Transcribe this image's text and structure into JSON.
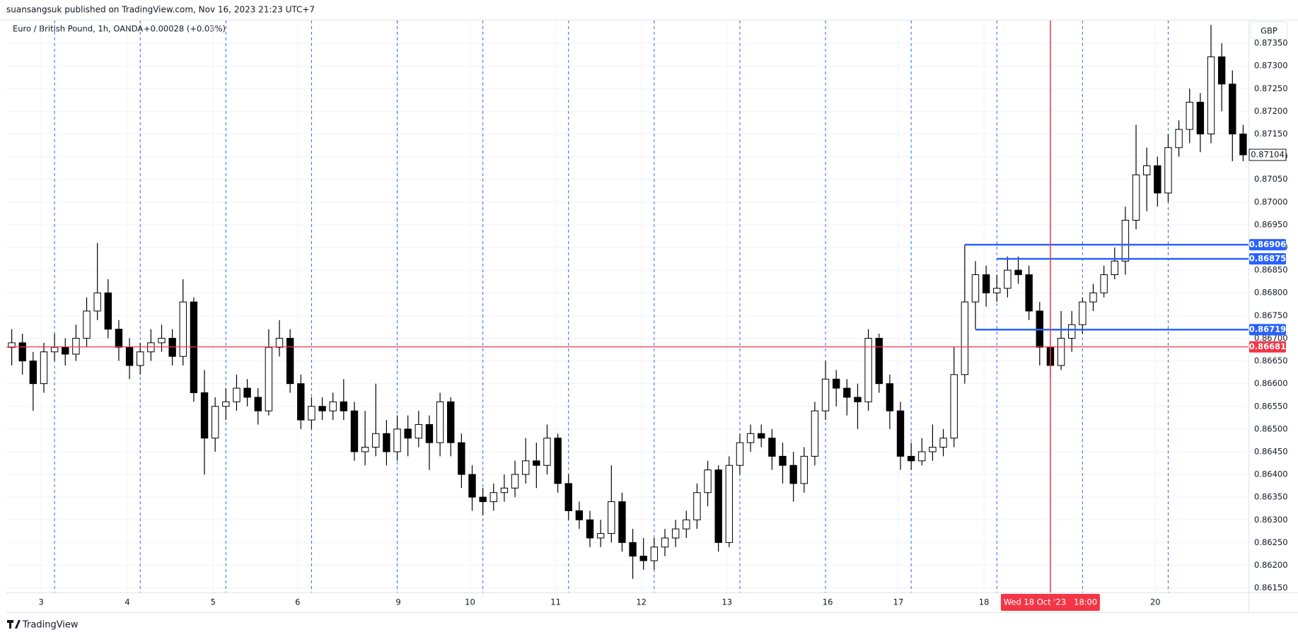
{
  "header": {
    "publisher": "suansangsuk published on TradingView.com, Nov 16, 2023 21:23 UTC+7",
    "symbol": "Euro / British Pound, 1h, OANDA",
    "change": "+0.00028 (+0.03%)",
    "currency": "GBP",
    "brand": "TradingView"
  },
  "chart_data": {
    "type": "candlestick",
    "up_color": "#ffffff",
    "down_color": "#000000",
    "wick_color": "#000000",
    "grid": true,
    "xlim": [
      0,
      116
    ],
    "ylim": [
      0.8614,
      0.874
    ],
    "yticks": [
      {
        "value": 0.8615,
        "label": "0.86150"
      },
      {
        "value": 0.862,
        "label": "0.86200"
      },
      {
        "value": 0.8625,
        "label": "0.86250"
      },
      {
        "value": 0.863,
        "label": "0.86300"
      },
      {
        "value": 0.8635,
        "label": "0.86350"
      },
      {
        "value": 0.864,
        "label": "0.86400"
      },
      {
        "value": 0.8645,
        "label": "0.86450"
      },
      {
        "value": 0.865,
        "label": "0.86500"
      },
      {
        "value": 0.8655,
        "label": "0.86550"
      },
      {
        "value": 0.866,
        "label": "0.86600"
      },
      {
        "value": 0.8665,
        "label": "0.86650"
      },
      {
        "value": 0.867,
        "label": "0.86700"
      },
      {
        "value": 0.8675,
        "label": "0.86750"
      },
      {
        "value": 0.868,
        "label": "0.86800"
      },
      {
        "value": 0.8685,
        "label": "0.86850"
      },
      {
        "value": 0.869,
        "label": "0.86900"
      },
      {
        "value": 0.8695,
        "label": "0.86950"
      },
      {
        "value": 0.87,
        "label": "0.87000"
      },
      {
        "value": 0.8705,
        "label": "0.87050"
      },
      {
        "value": 0.871,
        "label": "0.87100"
      },
      {
        "value": 0.8715,
        "label": "0.87150"
      },
      {
        "value": 0.872,
        "label": "0.87200"
      },
      {
        "value": 0.8725,
        "label": "0.87250"
      },
      {
        "value": 0.873,
        "label": "0.87300"
      },
      {
        "value": 0.8735,
        "label": "0.87350"
      }
    ],
    "xticks": [
      {
        "value": 3.25,
        "label": "3"
      },
      {
        "value": 11.3,
        "label": "4"
      },
      {
        "value": 19.3,
        "label": "5"
      },
      {
        "value": 27.2,
        "label": "6"
      },
      {
        "value": 36.6,
        "label": "9"
      },
      {
        "value": 43.3,
        "label": "10"
      },
      {
        "value": 51.3,
        "label": "11"
      },
      {
        "value": 59.3,
        "label": "12"
      },
      {
        "value": 67.3,
        "label": "13"
      },
      {
        "value": 76.7,
        "label": "16"
      },
      {
        "value": 83.3,
        "label": "17"
      },
      {
        "value": 91.3,
        "label": "18"
      },
      {
        "value": 107.3,
        "label": "20"
      }
    ],
    "session_lines": {
      "color": "#2962ff",
      "x": [
        4.5,
        12.5,
        20.5,
        28.5,
        36.5,
        44.5,
        52.5,
        60.5,
        68.5,
        76.5,
        84.5,
        92.5,
        100.5,
        108.5
      ]
    },
    "horizontal_lines": [
      {
        "price": 0.86906,
        "start": 89.5,
        "color": "#2962ff"
      },
      {
        "price": 0.86875,
        "start": 92.5,
        "color": "#2962ff"
      },
      {
        "price": 0.86719,
        "start": 90.5,
        "color": "#2962ff"
      },
      {
        "price": 0.86681,
        "start": 0,
        "color": "#f23645"
      }
    ],
    "crosshair": {
      "x": 97.5,
      "label": "Wed 18 Oct '23   18:00",
      "color": "#f23645"
    },
    "last_price": 0.87104,
    "ohlc": [
      [
        0.8668,
        0.8672,
        0.8664,
        0.8669
      ],
      [
        0.8669,
        0.8671,
        0.8662,
        0.8665
      ],
      [
        0.8665,
        0.8667,
        0.8654,
        0.866
      ],
      [
        0.866,
        0.8669,
        0.8658,
        0.8667
      ],
      [
        0.8667,
        0.8671,
        0.8665,
        0.8668
      ],
      [
        0.8668,
        0.867,
        0.8664,
        0.86665
      ],
      [
        0.86665,
        0.8673,
        0.8665,
        0.867
      ],
      [
        0.867,
        0.8679,
        0.8668,
        0.8676
      ],
      [
        0.8676,
        0.8691,
        0.8674,
        0.868
      ],
      [
        0.868,
        0.8683,
        0.867,
        0.8672
      ],
      [
        0.8672,
        0.8674,
        0.8665,
        0.8668
      ],
      [
        0.8668,
        0.867,
        0.8661,
        0.8664
      ],
      [
        0.8664,
        0.8669,
        0.8662,
        0.8667
      ],
      [
        0.8667,
        0.8672,
        0.8665,
        0.8669
      ],
      [
        0.8669,
        0.8673,
        0.8667,
        0.867
      ],
      [
        0.867,
        0.8672,
        0.8664,
        0.8666
      ],
      [
        0.8666,
        0.8683,
        0.8664,
        0.8678
      ],
      [
        0.8678,
        0.8679,
        0.8656,
        0.8658
      ],
      [
        0.8658,
        0.8663,
        0.864,
        0.8648
      ],
      [
        0.8648,
        0.8657,
        0.8645,
        0.8655
      ],
      [
        0.8655,
        0.8659,
        0.8652,
        0.8656
      ],
      [
        0.8656,
        0.8662,
        0.8654,
        0.8659
      ],
      [
        0.8659,
        0.8661,
        0.8655,
        0.8657
      ],
      [
        0.8657,
        0.8659,
        0.8651,
        0.8654
      ],
      [
        0.8654,
        0.8672,
        0.8653,
        0.8668
      ],
      [
        0.8668,
        0.8674,
        0.8666,
        0.867
      ],
      [
        0.867,
        0.8672,
        0.8658,
        0.866
      ],
      [
        0.866,
        0.8662,
        0.865,
        0.8652
      ],
      [
        0.8652,
        0.8657,
        0.865,
        0.8655
      ],
      [
        0.8655,
        0.8657,
        0.8652,
        0.8654
      ],
      [
        0.8654,
        0.8658,
        0.8652,
        0.8656
      ],
      [
        0.8656,
        0.8661,
        0.8652,
        0.8654
      ],
      [
        0.8654,
        0.8656,
        0.8643,
        0.8645
      ],
      [
        0.8645,
        0.8654,
        0.8642,
        0.8646
      ],
      [
        0.8646,
        0.866,
        0.8644,
        0.8649
      ],
      [
        0.8649,
        0.8652,
        0.8642,
        0.8645
      ],
      [
        0.8645,
        0.8653,
        0.8643,
        0.865
      ],
      [
        0.865,
        0.8653,
        0.8644,
        0.8648
      ],
      [
        0.8648,
        0.8654,
        0.8646,
        0.8651
      ],
      [
        0.8651,
        0.8653,
        0.8641,
        0.8647
      ],
      [
        0.8647,
        0.8658,
        0.8644,
        0.8656
      ],
      [
        0.8656,
        0.8657,
        0.8644,
        0.8647
      ],
      [
        0.8647,
        0.8649,
        0.8637,
        0.864
      ],
      [
        0.864,
        0.8642,
        0.8632,
        0.8635
      ],
      [
        0.8635,
        0.8637,
        0.8631,
        0.8634
      ],
      [
        0.8634,
        0.8638,
        0.8632,
        0.8636
      ],
      [
        0.8636,
        0.864,
        0.8634,
        0.8637
      ],
      [
        0.8637,
        0.8643,
        0.8635,
        0.864
      ],
      [
        0.864,
        0.8648,
        0.8638,
        0.8643
      ],
      [
        0.8643,
        0.8647,
        0.8637,
        0.8642
      ],
      [
        0.8642,
        0.8651,
        0.864,
        0.8648
      ],
      [
        0.8648,
        0.8649,
        0.8636,
        0.8638
      ],
      [
        0.8638,
        0.864,
        0.863,
        0.8632
      ],
      [
        0.8632,
        0.8634,
        0.8628,
        0.863
      ],
      [
        0.863,
        0.8632,
        0.8624,
        0.8626
      ],
      [
        0.8626,
        0.863,
        0.8624,
        0.8627
      ],
      [
        0.8627,
        0.8642,
        0.8625,
        0.8634
      ],
      [
        0.8634,
        0.8636,
        0.8623,
        0.8625
      ],
      [
        0.8625,
        0.8628,
        0.8617,
        0.8622
      ],
      [
        0.8622,
        0.8626,
        0.8619,
        0.8621
      ],
      [
        0.8621,
        0.8626,
        0.8619,
        0.8624
      ],
      [
        0.8624,
        0.8628,
        0.8622,
        0.8626
      ],
      [
        0.8626,
        0.863,
        0.8624,
        0.8628
      ],
      [
        0.8628,
        0.8632,
        0.8626,
        0.863
      ],
      [
        0.863,
        0.8638,
        0.8628,
        0.8636
      ],
      [
        0.8636,
        0.8643,
        0.8633,
        0.8641
      ],
      [
        0.8641,
        0.8642,
        0.8623,
        0.8625
      ],
      [
        0.8625,
        0.8644,
        0.8624,
        0.8642
      ],
      [
        0.8642,
        0.8649,
        0.864,
        0.8647
      ],
      [
        0.8647,
        0.8651,
        0.8645,
        0.8649
      ],
      [
        0.8649,
        0.8651,
        0.8646,
        0.8648
      ],
      [
        0.8648,
        0.865,
        0.8641,
        0.8644
      ],
      [
        0.8644,
        0.8647,
        0.8638,
        0.8642
      ],
      [
        0.8642,
        0.8645,
        0.8634,
        0.8638
      ],
      [
        0.8638,
        0.8646,
        0.8636,
        0.8644
      ],
      [
        0.8644,
        0.8656,
        0.8642,
        0.8654
      ],
      [
        0.8654,
        0.8665,
        0.8652,
        0.8661
      ],
      [
        0.8661,
        0.8663,
        0.8655,
        0.8659
      ],
      [
        0.8659,
        0.8661,
        0.8653,
        0.8657
      ],
      [
        0.8657,
        0.866,
        0.865,
        0.8656
      ],
      [
        0.8656,
        0.8672,
        0.8654,
        0.867
      ],
      [
        0.867,
        0.8671,
        0.8658,
        0.866
      ],
      [
        0.866,
        0.8662,
        0.865,
        0.8654
      ],
      [
        0.8654,
        0.8656,
        0.8641,
        0.8644
      ],
      [
        0.8644,
        0.8647,
        0.8641,
        0.8643
      ],
      [
        0.8643,
        0.8648,
        0.8642,
        0.8645
      ],
      [
        0.8645,
        0.8651,
        0.8643,
        0.8646
      ],
      [
        0.8646,
        0.865,
        0.8644,
        0.8648
      ],
      [
        0.8648,
        0.8668,
        0.8646,
        0.8662
      ],
      [
        0.8662,
        0.86906,
        0.866,
        0.8678
      ],
      [
        0.8678,
        0.8687,
        0.8672,
        0.8684
      ],
      [
        0.8684,
        0.8686,
        0.8677,
        0.868
      ],
      [
        0.868,
        0.8684,
        0.8678,
        0.8681
      ],
      [
        0.8681,
        0.8688,
        0.8679,
        0.8685
      ],
      [
        0.8685,
        0.8688,
        0.8682,
        0.8684
      ],
      [
        0.8684,
        0.8686,
        0.8674,
        0.8676
      ],
      [
        0.8676,
        0.8678,
        0.8664,
        0.8668
      ],
      [
        0.8668,
        0.867,
        0.8661,
        0.8664
      ],
      [
        0.8664,
        0.8676,
        0.8663,
        0.867
      ],
      [
        0.867,
        0.8676,
        0.8667,
        0.8673
      ],
      [
        0.8673,
        0.8679,
        0.8671,
        0.8678
      ],
      [
        0.8678,
        0.8682,
        0.8676,
        0.868
      ],
      [
        0.868,
        0.8686,
        0.8679,
        0.8684
      ],
      [
        0.8684,
        0.869,
        0.8683,
        0.8687
      ],
      [
        0.8687,
        0.8699,
        0.8684,
        0.8696
      ],
      [
        0.8696,
        0.8717,
        0.8694,
        0.8706
      ],
      [
        0.8706,
        0.8712,
        0.8698,
        0.8708
      ],
      [
        0.8708,
        0.871,
        0.8699,
        0.8702
      ],
      [
        0.8702,
        0.8715,
        0.87,
        0.8712
      ],
      [
        0.8712,
        0.8718,
        0.871,
        0.8716
      ],
      [
        0.8716,
        0.8725,
        0.8713,
        0.8722
      ],
      [
        0.8722,
        0.8724,
        0.8711,
        0.8715
      ],
      [
        0.8715,
        0.8739,
        0.8713,
        0.8732
      ],
      [
        0.8732,
        0.8735,
        0.872,
        0.8726
      ],
      [
        0.8726,
        0.8729,
        0.8709,
        0.8715
      ],
      [
        0.8715,
        0.8717,
        0.8709,
        0.87104
      ]
    ]
  }
}
